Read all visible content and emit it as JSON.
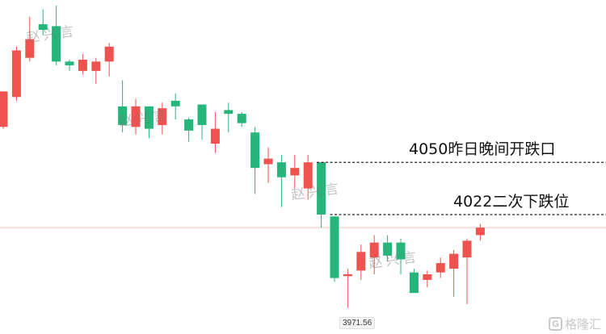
{
  "chart_data": {
    "type": "candlestick",
    "ylim": [
      3958,
      4137
    ],
    "colors": {
      "up": "#ef5350",
      "down": "#26b57b",
      "price_line": "#f3c4c4",
      "level_line": "#222222"
    },
    "candles": [
      {
        "o": 4069,
        "c": 4088,
        "h": 4088,
        "l": 4068
      },
      {
        "o": 4085,
        "c": 4110,
        "h": 4112,
        "l": 4083
      },
      {
        "o": 4106,
        "c": 4116,
        "h": 4128,
        "l": 4104
      },
      {
        "o": 4124,
        "c": 4121,
        "h": 4132,
        "l": 4118
      },
      {
        "o": 4123,
        "c": 4104,
        "h": 4134,
        "l": 4102
      },
      {
        "o": 4104,
        "c": 4102,
        "h": 4105,
        "l": 4099
      },
      {
        "o": 4099,
        "c": 4105,
        "h": 4108,
        "l": 4097
      },
      {
        "o": 4099,
        "c": 4104,
        "h": 4106,
        "l": 4092
      },
      {
        "o": 4104,
        "c": 4112,
        "h": 4114,
        "l": 4096
      },
      {
        "o": 4080,
        "c": 4070,
        "h": 4094,
        "l": 4066
      },
      {
        "o": 4069,
        "c": 4080,
        "h": 4084,
        "l": 4065
      },
      {
        "o": 4080,
        "c": 4068,
        "h": 4080,
        "l": 4063
      },
      {
        "o": 4070,
        "c": 4079,
        "h": 4082,
        "l": 4065
      },
      {
        "o": 4083,
        "c": 4080,
        "h": 4087,
        "l": 4073
      },
      {
        "o": 4073,
        "c": 4067,
        "h": 4074,
        "l": 4061
      },
      {
        "o": 4081,
        "c": 4070,
        "h": 4081,
        "l": 4062
      },
      {
        "o": 4060,
        "c": 4068,
        "h": 4077,
        "l": 4055
      },
      {
        "o": 4078,
        "c": 4076,
        "h": 4082,
        "l": 4066
      },
      {
        "o": 4076,
        "c": 4071,
        "h": 4077,
        "l": 4069
      },
      {
        "o": 4066,
        "c": 4047,
        "h": 4069,
        "l": 4033
      },
      {
        "o": 4049,
        "c": 4052,
        "h": 4058,
        "l": 4039
      },
      {
        "o": 4050,
        "c": 4042,
        "h": 4054,
        "l": 4026
      },
      {
        "o": 4043,
        "c": 4047,
        "h": 4054,
        "l": 4036
      },
      {
        "o": 4036,
        "c": 4050,
        "h": 4054,
        "l": 4030
      },
      {
        "o": 4050,
        "c": 4022,
        "h": 4050,
        "l": 4015
      },
      {
        "o": 4021,
        "c": 3988,
        "h": 4021,
        "l": 3986
      },
      {
        "o": 3989,
        "c": 3990,
        "h": 3993,
        "l": 3972
      },
      {
        "o": 3992,
        "c": 4002,
        "h": 4006,
        "l": 3987
      },
      {
        "o": 3999,
        "c": 4007,
        "h": 4011,
        "l": 3990
      },
      {
        "o": 4007,
        "c": 4000,
        "h": 4011,
        "l": 3997
      },
      {
        "o": 4007,
        "c": 3998,
        "h": 4009,
        "l": 3990
      },
      {
        "o": 3991,
        "c": 3980,
        "h": 3993,
        "l": 3980
      },
      {
        "o": 3987,
        "c": 3990,
        "h": 3992,
        "l": 3983
      },
      {
        "o": 3991,
        "c": 3996,
        "h": 3999,
        "l": 3988
      },
      {
        "o": 3993,
        "c": 4001,
        "h": 4003,
        "l": 3978
      },
      {
        "o": 3999,
        "c": 4008,
        "h": 4009,
        "l": 3974
      },
      {
        "o": 4011,
        "c": 4015,
        "h": 4017,
        "l": 4008
      }
    ],
    "price_line_value": 4015,
    "levels": [
      {
        "value": 4050,
        "label": "4050昨日晚间开跌口",
        "start_index": 24
      },
      {
        "value": 4022,
        "label": "4022二次下跌位",
        "start_index": 25
      }
    ],
    "low_label": "3971.56"
  },
  "watermark": "赵兴言",
  "brand": {
    "logo": "G",
    "name": "格隆汇"
  }
}
